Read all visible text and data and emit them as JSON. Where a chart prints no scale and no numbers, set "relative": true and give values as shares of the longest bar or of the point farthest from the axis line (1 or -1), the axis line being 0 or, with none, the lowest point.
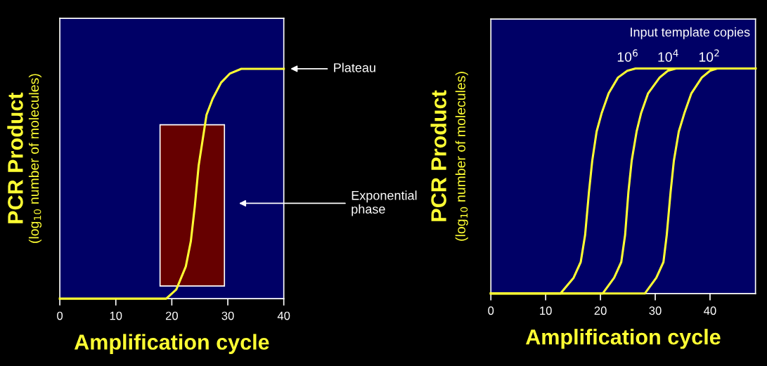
{
  "chart_data": [
    {
      "type": "line",
      "relative": true,
      "xlabel": "Amplification cycle",
      "ylabel": "PCR Product\n(log$_{10}$ number of molecules)",
      "xlim": [
        0,
        40
      ],
      "xticks": [
        0,
        10,
        20,
        30,
        40
      ],
      "series": [
        {
          "color": "#ffff33",
          "x": [
            0,
            19,
            20.8,
            22.5,
            23.4,
            24.1,
            24.8,
            25.5,
            26.2,
            27.3,
            28.8,
            30.4,
            32.4,
            40
          ],
          "values": [
            0,
            0,
            0.04,
            0.14,
            0.25,
            0.4,
            0.58,
            0.69,
            0.8,
            0.87,
            0.94,
            0.98,
            1,
            1
          ]
        }
      ],
      "bands": [
        {
          "axis": "x",
          "from": 17.9,
          "to": 29.4,
          "color": "#660000"
        }
      ],
      "annotations": [
        "Plateau",
        "Exponential\nphase"
      ]
    },
    {
      "type": "line",
      "relative": true,
      "xlabel": "Amplification cycle",
      "ylabel": "PCR Product\n(log$_{10}$ number of molecules)",
      "xlim": [
        0,
        48.3
      ],
      "xticks": [
        0,
        10,
        20,
        30,
        40
      ],
      "legend_title": "Input template copies",
      "series": [
        {
          "name": "10$^{6}$",
          "color": "#ffff33",
          "x": [
            0,
            12.7,
            15.1,
            16.4,
            17.2,
            17.9,
            18.5,
            19.3,
            20.2,
            21.5,
            23.2,
            24.9,
            26.4,
            48.3
          ],
          "values": [
            0,
            0,
            0.07,
            0.14,
            0.26,
            0.45,
            0.59,
            0.72,
            0.8,
            0.89,
            0.96,
            0.99,
            1,
            1
          ]
        },
        {
          "name": "10$^{4}$",
          "color": "#ffff33",
          "x": [
            0,
            20.4,
            22.5,
            23.8,
            24.5,
            25.1,
            25.7,
            26.6,
            27.4,
            28.7,
            30.8,
            32.3,
            33.8,
            48.3
          ],
          "values": [
            0,
            0,
            0.07,
            0.14,
            0.26,
            0.45,
            0.59,
            0.72,
            0.8,
            0.89,
            0.96,
            0.99,
            1,
            1
          ]
        },
        {
          "name": "10$^{2}$",
          "color": "#ffff33",
          "x": [
            0,
            28.1,
            30.2,
            31.5,
            32.1,
            32.8,
            33.4,
            34.3,
            35.3,
            36.6,
            38.5,
            40.0,
            41.3,
            48.3
          ],
          "values": [
            0,
            0,
            0.07,
            0.14,
            0.26,
            0.45,
            0.59,
            0.72,
            0.8,
            0.89,
            0.96,
            0.99,
            1,
            1
          ]
        }
      ]
    }
  ]
}
